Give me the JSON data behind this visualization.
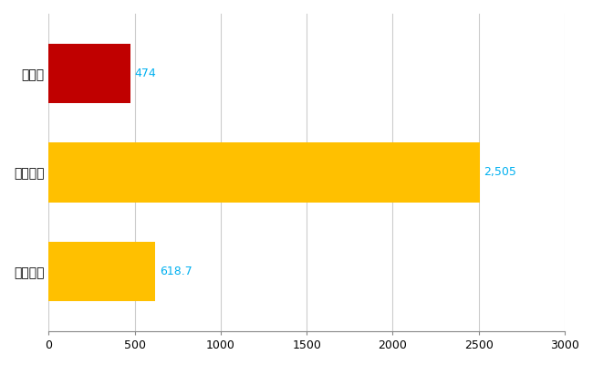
{
  "categories": [
    "岡山県",
    "全国最大",
    "全国平均"
  ],
  "values": [
    474,
    2505,
    618.7
  ],
  "bar_colors": [
    "#C00000",
    "#FFC000",
    "#FFC000"
  ],
  "value_labels": [
    "474",
    "2,505",
    "618.7"
  ],
  "value_label_color": "#00B0F0",
  "xlim": [
    0,
    3000
  ],
  "xticks": [
    0,
    500,
    1000,
    1500,
    2000,
    2500,
    3000
  ],
  "xtick_labels": [
    "0",
    "500",
    "1000",
    "1500",
    "2000",
    "2500",
    "3000"
  ],
  "background_color": "#FFFFFF",
  "grid_color": "#CCCCCC",
  "bar_height": 0.6,
  "figsize": [
    6.5,
    4.0
  ],
  "dpi": 100
}
